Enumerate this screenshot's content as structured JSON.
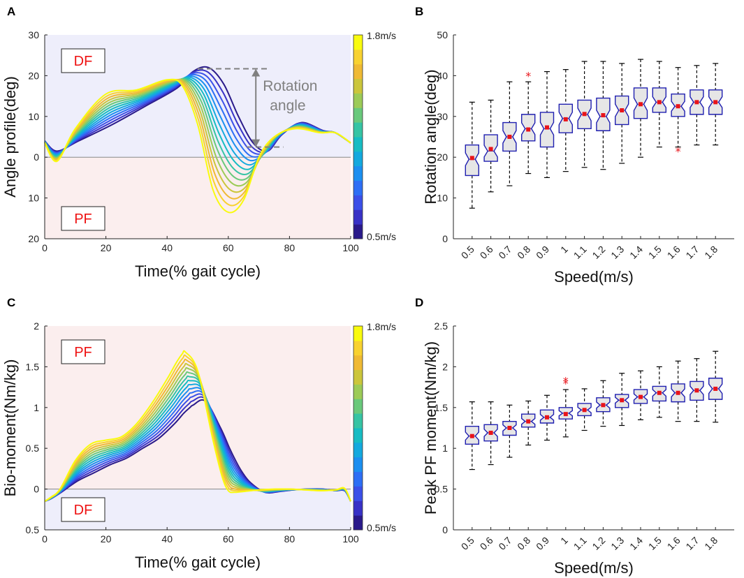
{
  "colors": {
    "df_region_top": "#eeeefb",
    "pf_region_bottom": "#fbeeee",
    "region_label_text": "#ee1111",
    "box_edge": "#1f1fb0",
    "box_fill": "#e6e6e6",
    "median_marker": "#e8141a",
    "whisker": "#000000",
    "annotation": "#808080",
    "speed_colormap": [
      "#2a1a8a",
      "#3832c6",
      "#3b50e8",
      "#2d6ff5",
      "#1b8ff0",
      "#13a9de",
      "#16bcc3",
      "#36c4a4",
      "#69c97b",
      "#9ccb57",
      "#cbc63b",
      "#efba34",
      "#f8d230",
      "#f9fb0e"
    ]
  },
  "chart_data": [
    {
      "id": "A",
      "panel_letter": "A",
      "type": "line",
      "xlabel": "Time(% gait cycle)",
      "ylabel": "Angle profile(deg)",
      "xlim": [
        0,
        100
      ],
      "ylim": [
        -20,
        30
      ],
      "xticks": [
        0,
        20,
        40,
        60,
        80,
        100
      ],
      "xtick_labels": [
        "0",
        "20",
        "40",
        "60",
        "80",
        "100"
      ],
      "yticks": [
        30,
        20,
        10,
        0,
        -10,
        -20
      ],
      "ytick_labels": [
        "30",
        "20",
        "10",
        "0",
        "10",
        "20"
      ],
      "regions": {
        "top_label": "DF",
        "bottom_label": "PF"
      },
      "colorbar": {
        "min_label": "0.5m/s",
        "max_label": "1.8m/s",
        "levels": 14
      },
      "annotation": {
        "line1": "Rotation",
        "line2": "angle",
        "top_y": 21.7,
        "bottom_y": 2.5,
        "arrow_x": 69
      },
      "series_knots": {
        "x": [
          0,
          4,
          10,
          20,
          30,
          40,
          45,
          50,
          55,
          60,
          65,
          70,
          75,
          82,
          90,
          95,
          100
        ],
        "slow": [
          4,
          1.5,
          4,
          8,
          12.5,
          17,
          21,
          22,
          18,
          10,
          3.5,
          1.5,
          5.5,
          8.5,
          6.5,
          6,
          3.5
        ],
        "fast": [
          3.5,
          -1,
          7,
          15.5,
          16.5,
          19,
          17.5,
          8,
          -8,
          -13.5,
          -10.5,
          0,
          5,
          7,
          6,
          6,
          3.5
        ]
      },
      "speeds": [
        0.5,
        0.6,
        0.7,
        0.8,
        0.9,
        1.0,
        1.1,
        1.2,
        1.3,
        1.4,
        1.5,
        1.6,
        1.7,
        1.8
      ]
    },
    {
      "id": "B",
      "panel_letter": "B",
      "type": "box",
      "xlabel": "Speed(m/s)",
      "ylabel": "Rotation angle(deg)",
      "ylim": [
        0,
        50
      ],
      "yticks": [
        0,
        10,
        20,
        30,
        40,
        50
      ],
      "ytick_labels": [
        "0",
        "10",
        "20",
        "30",
        "40",
        "50"
      ],
      "categories": [
        "0.5",
        "0.6",
        "0.7",
        "0.8",
        "0.9",
        "1",
        "1.1",
        "1.2",
        "1.3",
        "1.4",
        "1.5",
        "1.6",
        "1.7",
        "1.8"
      ],
      "boxes": [
        {
          "lo": 7.5,
          "q1": 15.5,
          "med": 19.5,
          "mean": 19.8,
          "q3": 23,
          "hi": 33.5,
          "outliers": []
        },
        {
          "lo": 11.5,
          "q1": 19,
          "med": 21.5,
          "mean": 22,
          "q3": 25.5,
          "hi": 34,
          "outliers": []
        },
        {
          "lo": 13,
          "q1": 21.5,
          "med": 25,
          "mean": 25,
          "q3": 28.5,
          "hi": 38.5,
          "outliers": []
        },
        {
          "lo": 16,
          "q1": 24,
          "med": 27,
          "mean": 26.8,
          "q3": 30.5,
          "hi": 38.5,
          "outliers": [
            40
          ]
        },
        {
          "lo": 15,
          "q1": 22.5,
          "med": 27,
          "mean": 27.3,
          "q3": 31,
          "hi": 41,
          "outliers": []
        },
        {
          "lo": 16.5,
          "q1": 26,
          "med": 29.5,
          "mean": 29.3,
          "q3": 33,
          "hi": 41.5,
          "outliers": []
        },
        {
          "lo": 17.5,
          "q1": 27,
          "med": 30.5,
          "mean": 30.6,
          "q3": 34,
          "hi": 43.5,
          "outliers": []
        },
        {
          "lo": 17,
          "q1": 26.5,
          "med": 30,
          "mean": 30.3,
          "q3": 34.5,
          "hi": 43.5,
          "outliers": []
        },
        {
          "lo": 18.5,
          "q1": 28,
          "med": 31.5,
          "mean": 31.5,
          "q3": 35,
          "hi": 43,
          "outliers": []
        },
        {
          "lo": 20,
          "q1": 29.5,
          "med": 33,
          "mean": 33,
          "q3": 37,
          "hi": 44,
          "outliers": []
        },
        {
          "lo": 22.5,
          "q1": 31,
          "med": 33.5,
          "mean": 33.5,
          "q3": 37,
          "hi": 43.5,
          "outliers": []
        },
        {
          "lo": 22.5,
          "q1": 30,
          "med": 32.5,
          "mean": 32.5,
          "q3": 35.5,
          "hi": 42,
          "outliers": [
            21.5
          ]
        },
        {
          "lo": 23,
          "q1": 30.5,
          "med": 33.5,
          "mean": 33.5,
          "q3": 36.5,
          "hi": 42.5,
          "outliers": []
        },
        {
          "lo": 23,
          "q1": 30.5,
          "med": 33.5,
          "mean": 33.5,
          "q3": 36.5,
          "hi": 43,
          "outliers": []
        }
      ]
    },
    {
      "id": "C",
      "panel_letter": "C",
      "type": "line",
      "xlabel": "Time(% gait cycle)",
      "ylabel": "Bio-moment(Nm/kg)",
      "xlim": [
        0,
        100
      ],
      "ylim": [
        -0.5,
        2
      ],
      "xticks": [
        0,
        20,
        40,
        60,
        80,
        100
      ],
      "xtick_labels": [
        "0",
        "20",
        "40",
        "60",
        "80",
        "100"
      ],
      "yticks": [
        2,
        1.5,
        1,
        0.5,
        0,
        -0.5
      ],
      "ytick_labels": [
        "2",
        "1.5",
        "1",
        "0.5",
        "0",
        "0.5"
      ],
      "regions": {
        "top_label": "PF",
        "bottom_label": "DF"
      },
      "colorbar": {
        "min_label": "0.5m/s",
        "max_label": "1.8m/s",
        "levels": 14
      },
      "series_knots": {
        "x": [
          0,
          2,
          5,
          10,
          15,
          20,
          25,
          30,
          35,
          40,
          43,
          45,
          46,
          50,
          55,
          58,
          60,
          62,
          65,
          70,
          75,
          80,
          85,
          90,
          95,
          98,
          100
        ],
        "slow": [
          -0.15,
          -0.12,
          -0.05,
          0.1,
          0.2,
          0.3,
          0.38,
          0.5,
          0.62,
          0.8,
          0.93,
          1.0,
          1.03,
          1.08,
          0.75,
          0.5,
          0.35,
          0.22,
          0.08,
          -0.04,
          -0.03,
          -0.01,
          0,
          0,
          -0.02,
          -0.02,
          -0.15
        ],
        "fast": [
          -0.15,
          -0.1,
          0,
          0.35,
          0.55,
          0.6,
          0.64,
          0.8,
          1.05,
          1.35,
          1.55,
          1.66,
          1.68,
          1.45,
          0.6,
          0.15,
          -0.02,
          -0.04,
          -0.03,
          -0.01,
          0,
          0,
          -0.01,
          -0.02,
          -0.01,
          0.01,
          -0.15
        ]
      },
      "speeds": [
        0.5,
        0.6,
        0.7,
        0.8,
        0.9,
        1.0,
        1.1,
        1.2,
        1.3,
        1.4,
        1.5,
        1.6,
        1.7,
        1.8
      ]
    },
    {
      "id": "D",
      "panel_letter": "D",
      "type": "box",
      "xlabel": "Speed(m/s)",
      "ylabel": "Peak PF moment(Nm/kg)",
      "ylim": [
        0,
        2.5
      ],
      "yticks": [
        0,
        0.5,
        1,
        1.5,
        2,
        2.5
      ],
      "ytick_labels": [
        "0",
        "0.5",
        "1",
        "1.5",
        "2",
        "2.5"
      ],
      "categories": [
        "0.5",
        "0.6",
        "0.7",
        "0.8",
        "0.9",
        "1",
        "1.1",
        "1.2",
        "1.3",
        "1.4",
        "1.5",
        "1.6",
        "1.7",
        "1.8"
      ],
      "boxes": [
        {
          "lo": 0.74,
          "q1": 1.05,
          "med": 1.15,
          "mean": 1.15,
          "q3": 1.27,
          "hi": 1.57,
          "outliers": []
        },
        {
          "lo": 0.8,
          "q1": 1.09,
          "med": 1.19,
          "mean": 1.19,
          "q3": 1.29,
          "hi": 1.57,
          "outliers": []
        },
        {
          "lo": 0.89,
          "q1": 1.16,
          "med": 1.25,
          "mean": 1.25,
          "q3": 1.33,
          "hi": 1.53,
          "outliers": []
        },
        {
          "lo": 1.04,
          "q1": 1.26,
          "med": 1.33,
          "mean": 1.33,
          "q3": 1.42,
          "hi": 1.58,
          "outliers": []
        },
        {
          "lo": 1.1,
          "q1": 1.31,
          "med": 1.38,
          "mean": 1.38,
          "q3": 1.47,
          "hi": 1.65,
          "outliers": []
        },
        {
          "lo": 1.14,
          "q1": 1.36,
          "med": 1.43,
          "mean": 1.42,
          "q3": 1.5,
          "hi": 1.72,
          "outliers": [
            1.8,
            1.83
          ]
        },
        {
          "lo": 1.22,
          "q1": 1.4,
          "med": 1.47,
          "mean": 1.47,
          "q3": 1.55,
          "hi": 1.73,
          "outliers": []
        },
        {
          "lo": 1.27,
          "q1": 1.45,
          "med": 1.53,
          "mean": 1.53,
          "q3": 1.62,
          "hi": 1.83,
          "outliers": []
        },
        {
          "lo": 1.28,
          "q1": 1.5,
          "med": 1.59,
          "mean": 1.59,
          "q3": 1.66,
          "hi": 1.92,
          "outliers": []
        },
        {
          "lo": 1.35,
          "q1": 1.55,
          "med": 1.63,
          "mean": 1.63,
          "q3": 1.72,
          "hi": 1.95,
          "outliers": []
        },
        {
          "lo": 1.38,
          "q1": 1.58,
          "med": 1.68,
          "mean": 1.68,
          "q3": 1.76,
          "hi": 2.0,
          "outliers": []
        },
        {
          "lo": 1.33,
          "q1": 1.57,
          "med": 1.68,
          "mean": 1.68,
          "q3": 1.79,
          "hi": 2.07,
          "outliers": []
        },
        {
          "lo": 1.33,
          "q1": 1.59,
          "med": 1.71,
          "mean": 1.71,
          "q3": 1.82,
          "hi": 2.1,
          "outliers": []
        },
        {
          "lo": 1.32,
          "q1": 1.6,
          "med": 1.73,
          "mean": 1.73,
          "q3": 1.86,
          "hi": 2.19,
          "outliers": []
        }
      ]
    }
  ]
}
